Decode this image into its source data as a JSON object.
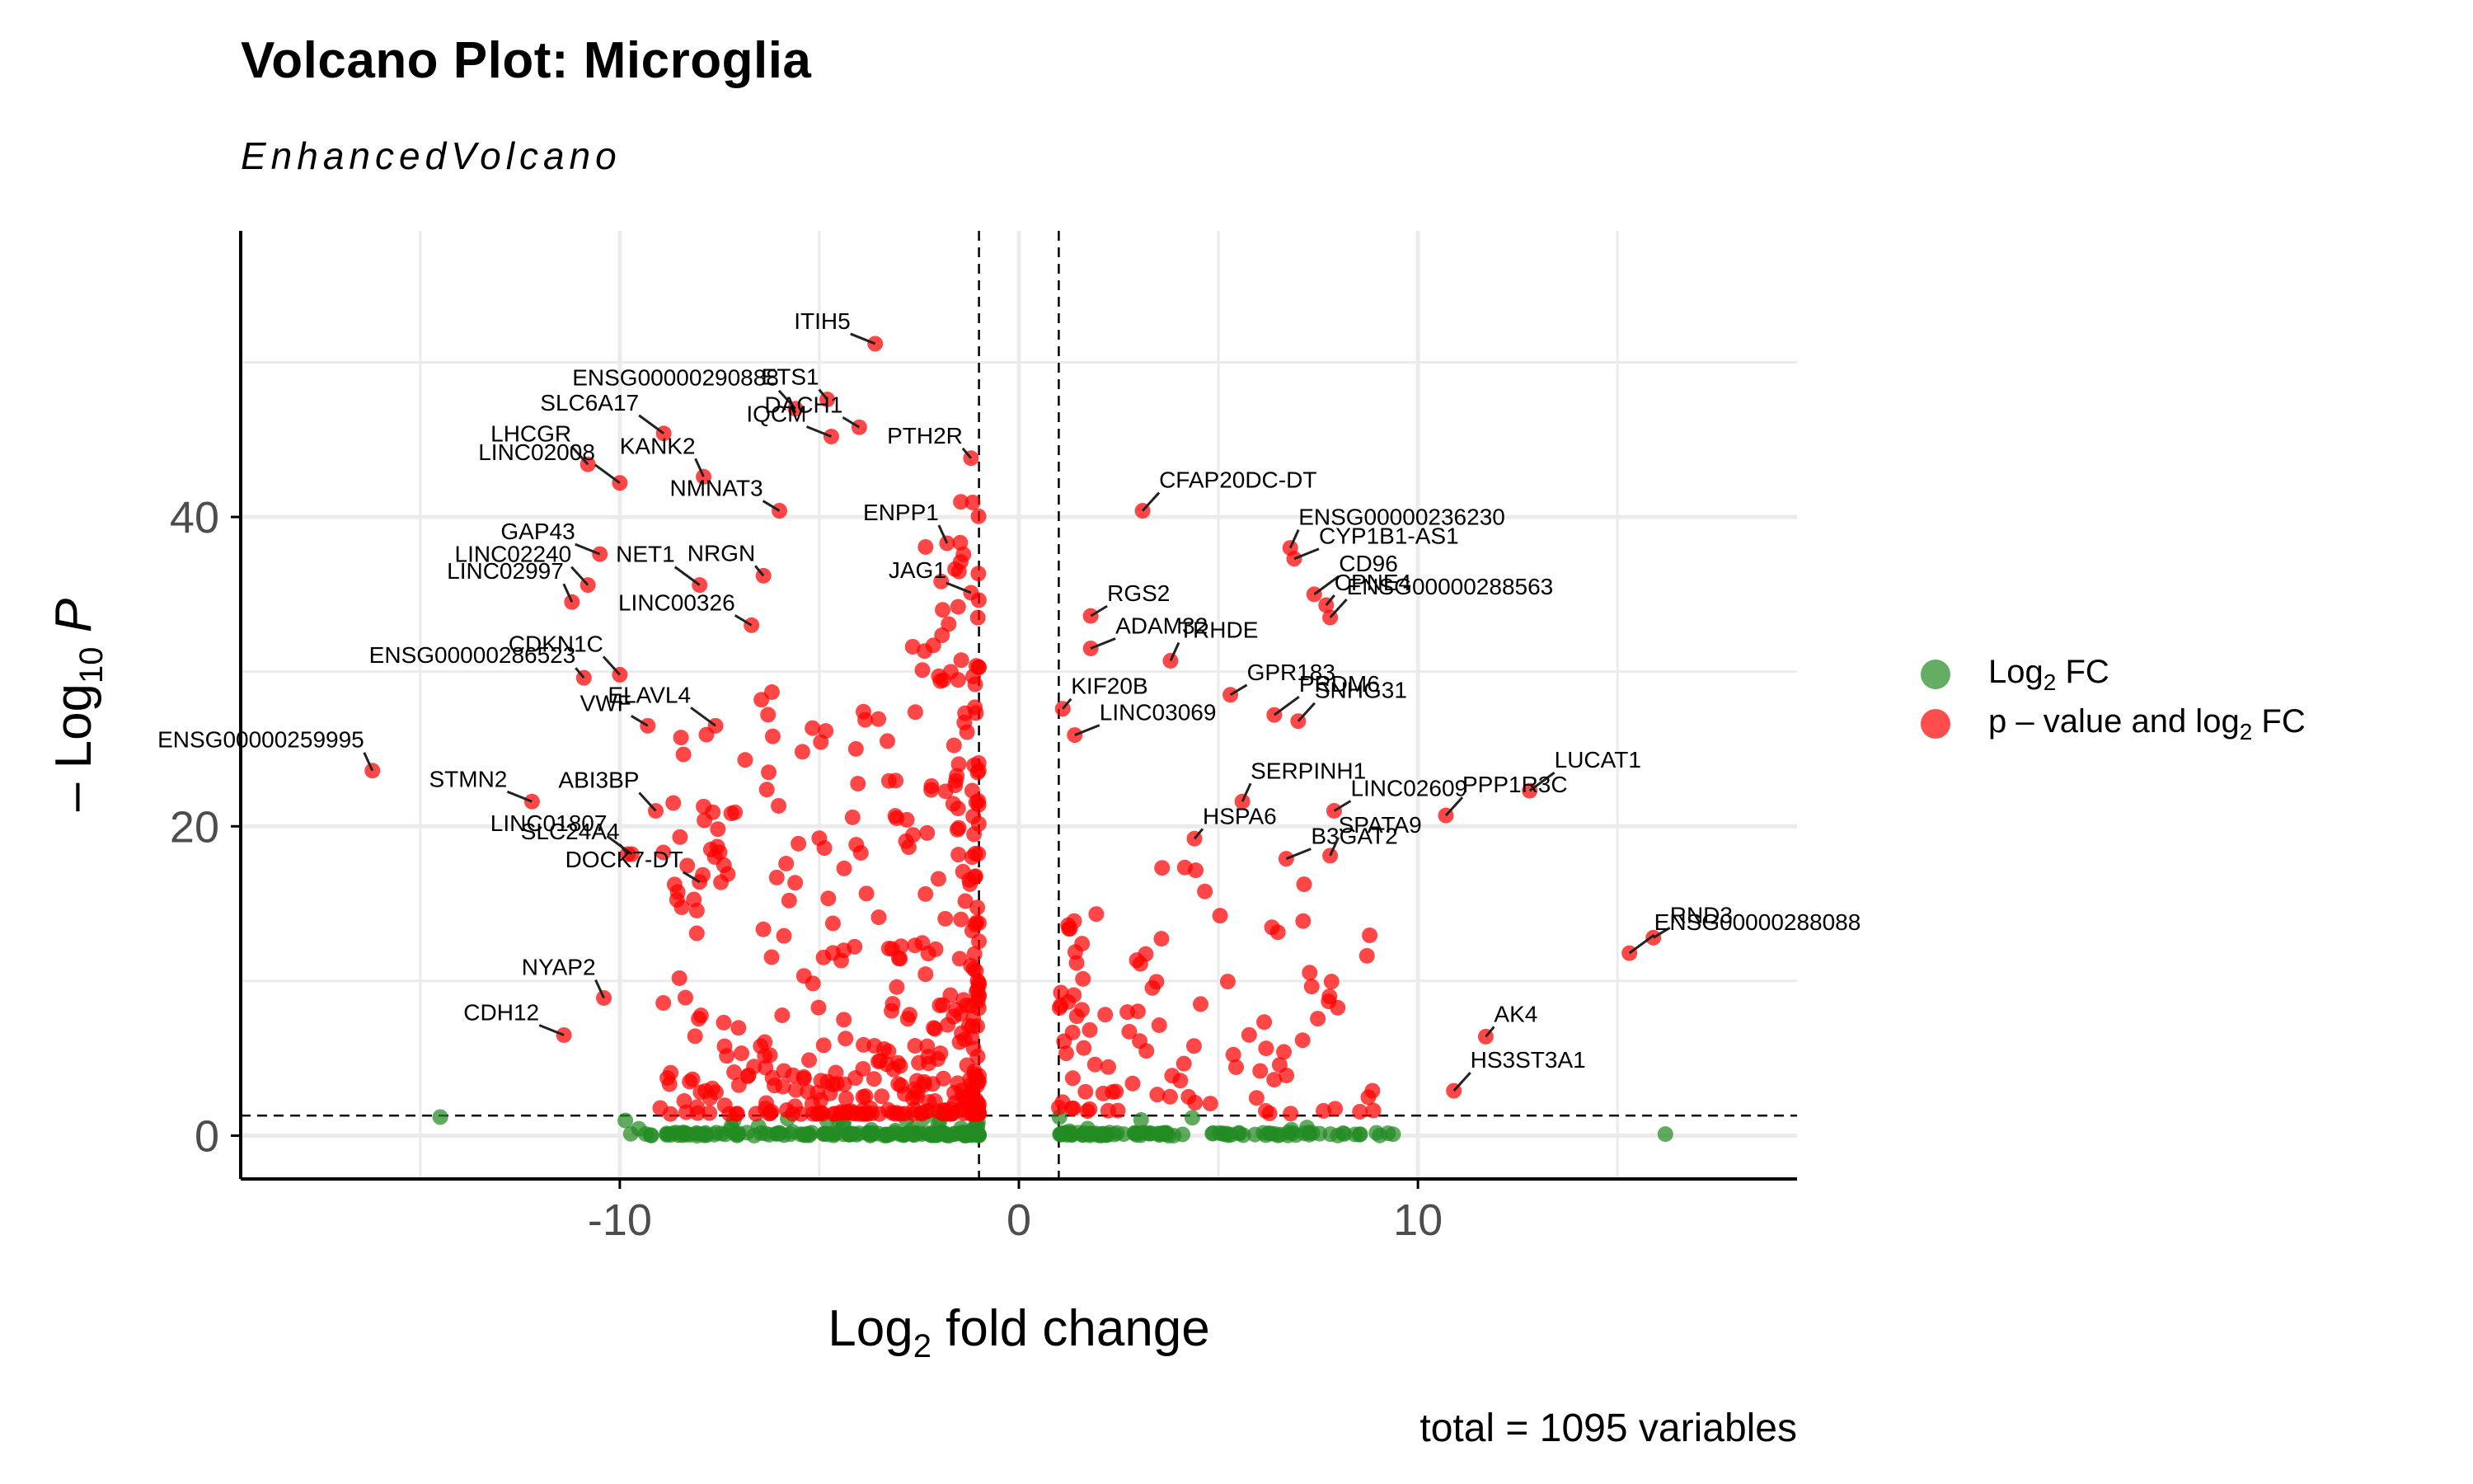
{
  "chart_data": {
    "type": "scatter",
    "title": "Volcano Plot: Microglia",
    "subtitle": "EnhancedVolcano",
    "xlabel": "Log2 fold change",
    "ylabel": "– Log10 P",
    "caption": "total = 1095 variables",
    "xlim": [
      -19.5,
      19.5
    ],
    "ylim": [
      -2.8,
      58.5
    ],
    "x_ticks": [
      -10,
      0,
      10
    ],
    "y_ticks": [
      0,
      20,
      40
    ],
    "fc_cutoff": 1,
    "p_cutoff_neglog10": 1.3,
    "grid": true,
    "legend_position": "right",
    "colors": {
      "ns": "#228B22",
      "sig": "#FF0000"
    },
    "legend": [
      {
        "key": "ns",
        "label": "Log2 FC"
      },
      {
        "key": "sig",
        "label": "p – value and log2 FC"
      }
    ],
    "labeled_points": [
      {
        "gene": "ITIH5",
        "x": -3.6,
        "y": 51.2
      },
      {
        "gene": "ENSG00000290888",
        "x": -5.6,
        "y": 47.0
      },
      {
        "gene": "ETS1",
        "x": -4.8,
        "y": 47.6
      },
      {
        "gene": "SLC6A17",
        "x": -8.9,
        "y": 45.4
      },
      {
        "gene": "DACH1",
        "x": -4.0,
        "y": 45.8
      },
      {
        "gene": "KANK2",
        "x": -7.9,
        "y": 42.6
      },
      {
        "gene": "IQCM",
        "x": -4.7,
        "y": 45.2
      },
      {
        "gene": "LHCGR",
        "x": -10.8,
        "y": 43.4
      },
      {
        "gene": "PTH2R",
        "x": -1.2,
        "y": 43.8
      },
      {
        "gene": "LINC02008",
        "x": -10.0,
        "y": 42.2
      },
      {
        "gene": "NMNAT3",
        "x": -6.0,
        "y": 40.4
      },
      {
        "gene": "ENPP1",
        "x": -1.8,
        "y": 38.3
      },
      {
        "gene": "GAP43",
        "x": -10.5,
        "y": 37.6
      },
      {
        "gene": "LINC02240",
        "x": -10.8,
        "y": 35.6
      },
      {
        "gene": "NRGN",
        "x": -6.4,
        "y": 36.2
      },
      {
        "gene": "NET1",
        "x": -8.0,
        "y": 35.6
      },
      {
        "gene": "LINC00326",
        "x": -6.7,
        "y": 33.0
      },
      {
        "gene": "LINC02997",
        "x": -11.2,
        "y": 34.5
      },
      {
        "gene": "JAG1",
        "x": -1.2,
        "y": 35.1
      },
      {
        "gene": "CDKN1C",
        "x": -10.0,
        "y": 29.8
      },
      {
        "gene": "ENSG00000286523",
        "x": -10.9,
        "y": 29.6
      },
      {
        "gene": "ELAVL4",
        "x": -7.6,
        "y": 26.5
      },
      {
        "gene": "VWF",
        "x": -9.3,
        "y": 26.5
      },
      {
        "gene": "ENSG00000259995",
        "x": -16.2,
        "y": 23.6
      },
      {
        "gene": "STMN2",
        "x": -12.2,
        "y": 21.6
      },
      {
        "gene": "ABI3BP",
        "x": -9.1,
        "y": 21.0
      },
      {
        "gene": "SLC24A4",
        "x": -9.8,
        "y": 18.2
      },
      {
        "gene": "LINC01807",
        "x": -9.7,
        "y": 18.2
      },
      {
        "gene": "DOCK7-DT",
        "x": -8.0,
        "y": 16.4
      },
      {
        "gene": "NYAP2",
        "x": -10.4,
        "y": 8.9
      },
      {
        "gene": "CDH12",
        "x": -11.4,
        "y": 6.5
      },
      {
        "gene": "CFAP20DC-DT",
        "x": 3.1,
        "y": 40.4
      },
      {
        "gene": "CYP1B1-AS1",
        "x": 6.9,
        "y": 37.3
      },
      {
        "gene": "ENSG00000236230",
        "x": 6.8,
        "y": 38.0
      },
      {
        "gene": "RGS2",
        "x": 1.8,
        "y": 33.6
      },
      {
        "gene": "CD96",
        "x": 7.4,
        "y": 35.0
      },
      {
        "gene": "CPNE4",
        "x": 7.7,
        "y": 34.3
      },
      {
        "gene": "ENSG00000288563",
        "x": 7.8,
        "y": 33.5
      },
      {
        "gene": "ADAM32",
        "x": 1.8,
        "y": 31.5
      },
      {
        "gene": "TRHDE",
        "x": 3.8,
        "y": 30.7
      },
      {
        "gene": "GPR183",
        "x": 5.3,
        "y": 28.5
      },
      {
        "gene": "PRDM6",
        "x": 6.4,
        "y": 27.2
      },
      {
        "gene": "KIF20B",
        "x": 1.1,
        "y": 27.6
      },
      {
        "gene": "SNHG31",
        "x": 7.0,
        "y": 26.8
      },
      {
        "gene": "LINC03069",
        "x": 1.4,
        "y": 25.9
      },
      {
        "gene": "SERPINH1",
        "x": 5.6,
        "y": 21.6
      },
      {
        "gene": "LINC02609",
        "x": 7.9,
        "y": 21.0
      },
      {
        "gene": "LUCAT1",
        "x": 12.8,
        "y": 22.3
      },
      {
        "gene": "HSPA6",
        "x": 4.4,
        "y": 19.2
      },
      {
        "gene": "PPP1R3C",
        "x": 10.7,
        "y": 20.7
      },
      {
        "gene": "B3GAT2",
        "x": 6.7,
        "y": 17.9
      },
      {
        "gene": "SPATA9",
        "x": 7.8,
        "y": 18.1
      },
      {
        "gene": "RND3",
        "x": 15.9,
        "y": 12.8
      },
      {
        "gene": "ENSG00000288088",
        "x": 15.3,
        "y": 11.8
      },
      {
        "gene": "AK4",
        "x": 11.7,
        "y": 6.4
      },
      {
        "gene": "HS3ST3A1",
        "x": 10.9,
        "y": 2.9
      }
    ]
  }
}
